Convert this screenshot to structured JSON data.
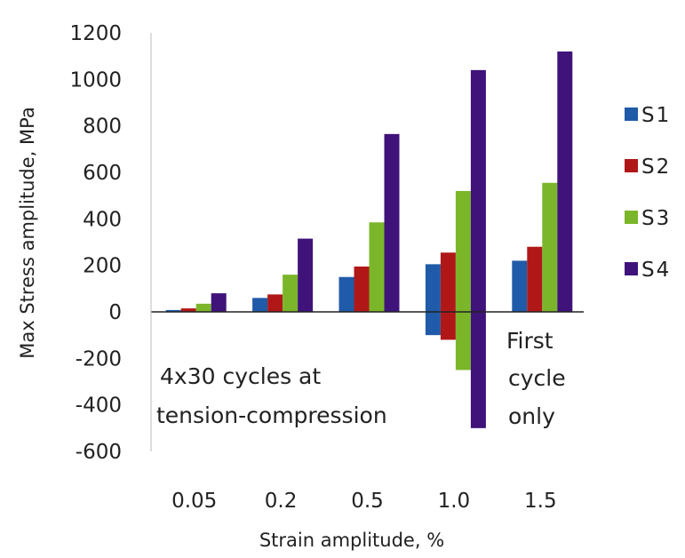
{
  "chart_data": {
    "type": "bar",
    "title": "",
    "xlabel": "Strain amplitude, %",
    "ylabel": "Max Stress amplitude, MPa",
    "ylim": [
      -600,
      1200
    ],
    "yticks": [
      "1200",
      "1000",
      "800",
      "600",
      "400",
      "200",
      "0",
      "-200",
      "-400",
      "-600"
    ],
    "categories": [
      "0.05",
      "0.2",
      "0.5",
      "1.0",
      "1.5"
    ],
    "legend_position": "right",
    "grid": false,
    "series": [
      {
        "name": "S1",
        "color": "#1f5ba8",
        "values": [
          8,
          60,
          150,
          205,
          220
        ],
        "negative_values": [
          null,
          null,
          null,
          -100,
          null
        ]
      },
      {
        "name": "S2",
        "color": "#b01818",
        "values": [
          15,
          75,
          195,
          255,
          280
        ],
        "negative_values": [
          null,
          null,
          null,
          -120,
          null
        ]
      },
      {
        "name": "S3",
        "color": "#7bb62a",
        "values": [
          35,
          160,
          385,
          520,
          555
        ],
        "negative_values": [
          null,
          null,
          null,
          -250,
          null
        ]
      },
      {
        "name": "S4",
        "color": "#3f137a",
        "values": [
          80,
          315,
          765,
          1040,
          1120
        ],
        "negative_values": [
          null,
          null,
          null,
          -500,
          null
        ]
      }
    ],
    "annotations": {
      "cycles_line1": "4x30 cycles at",
      "cycles_line2": "tension-compression",
      "first_line1": "First",
      "first_line2": "cycle",
      "first_line3": "only"
    }
  }
}
